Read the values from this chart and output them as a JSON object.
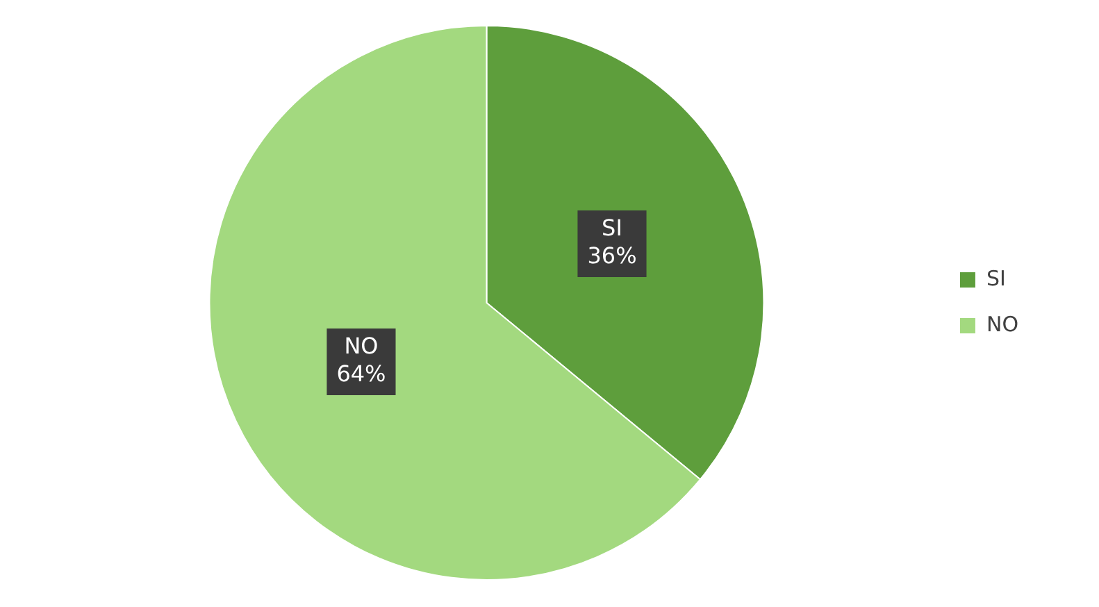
{
  "chart_data": {
    "type": "pie",
    "categories": [
      "SI",
      "NO"
    ],
    "values": [
      36,
      64
    ],
    "colors": [
      "#5e9e3c",
      "#a3d97f"
    ],
    "value_labels": [
      "36%",
      "64%"
    ],
    "legend": "right"
  }
}
